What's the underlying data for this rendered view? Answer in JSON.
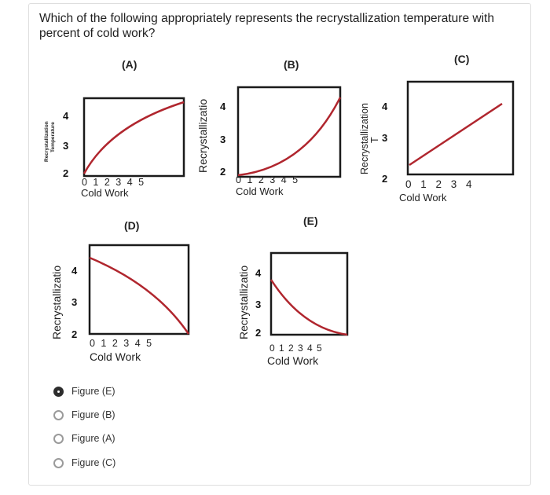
{
  "question": "Which of the following appropriately represents the recrystallization temperature with percent of cold work?",
  "colors": {
    "curve": "#b0262e",
    "frame": "#1a1a1a",
    "selected": "#2d2d2d"
  },
  "panels": {
    "A": {
      "label": "(A)",
      "ylabel_line1": "Recrystallization",
      "ylabel_line2": "Temperature",
      "yticks": [
        "4",
        "3",
        "2"
      ],
      "xticks": "0 1 2 3 4 5",
      "xlabel": "Cold Work"
    },
    "B": {
      "label": "(B)",
      "ylabel": "Recrystallizatio",
      "yticks": [
        "4",
        "3",
        "2"
      ],
      "xticks": "0 1 2 3 4 5",
      "xlabel": "Cold Work"
    },
    "C": {
      "label": "(C)",
      "ylabel": "Recrystallization",
      "ylabel_line2": "T",
      "yticks": [
        "4",
        "3",
        "2"
      ],
      "xticks": "0 1 2 3 4",
      "xlabel": "Cold Work"
    },
    "D": {
      "label": "(D)",
      "ylabel": "Recrystallizatio",
      "yticks": [
        "4",
        "3",
        "2"
      ],
      "xticks": "0 1 2 3 4 5",
      "xlabel": "Cold Work"
    },
    "E": {
      "label": "(E)",
      "ylabel": "Recrystallizatio",
      "yticks": [
        "4",
        "3",
        "2"
      ],
      "xticks": "0 1 2 3 4 5",
      "xlabel": "Cold Work"
    }
  },
  "options": [
    {
      "label": "Figure (E)",
      "selected": true
    },
    {
      "label": "Figure (B)",
      "selected": false
    },
    {
      "label": "Figure (A)",
      "selected": false
    },
    {
      "label": "Figure (C)",
      "selected": false
    }
  ]
}
